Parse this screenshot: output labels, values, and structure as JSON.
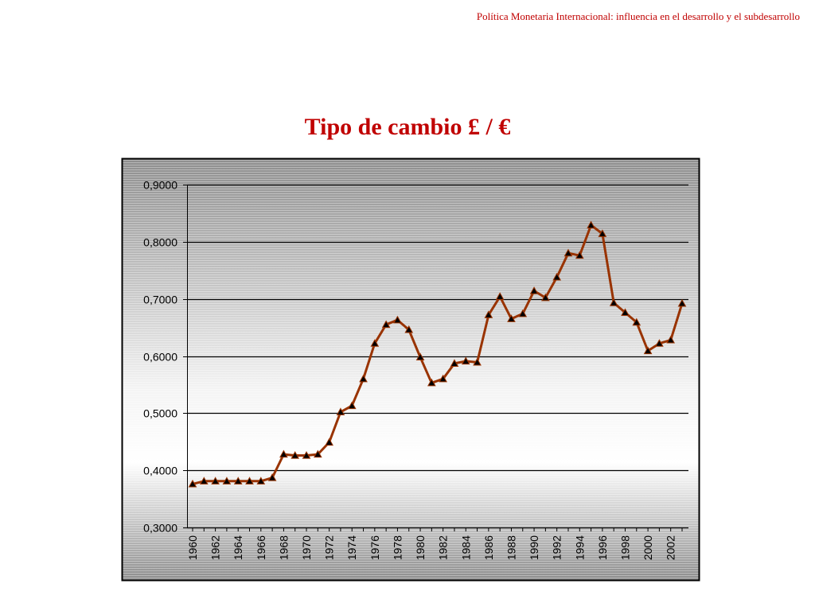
{
  "slide": {
    "header_note": "Política Monetaria Internacional: influencia en el desarrollo y el subdesarrollo",
    "title": "Tipo de cambio £ / €"
  },
  "colors": {
    "title": "#c00000",
    "line": "#993300",
    "marker": "#000000",
    "background_dark": "#9a9a9a",
    "background_light": "#ffffff"
  },
  "chart_data": {
    "type": "line",
    "title": "Tipo de cambio £ / €",
    "xlabel": "",
    "ylabel": "",
    "ylim": [
      0.3,
      0.9
    ],
    "y_ticks": [
      "0,3000",
      "0,4000",
      "0,5000",
      "0,6000",
      "0,7000",
      "0,8000",
      "0,9000"
    ],
    "y_tick_values": [
      0.3,
      0.4,
      0.5,
      0.6,
      0.7,
      0.8,
      0.9
    ],
    "x_tick_labels": [
      "1960",
      "1962",
      "1964",
      "1966",
      "1968",
      "1970",
      "1972",
      "1974",
      "1976",
      "1978",
      "1980",
      "1982",
      "1984",
      "1986",
      "1988",
      "1990",
      "1992",
      "1994",
      "1996",
      "1998",
      "2000",
      "2002"
    ],
    "grid": true,
    "legend": "none",
    "x": [
      1960,
      1961,
      1962,
      1963,
      1964,
      1965,
      1966,
      1967,
      1968,
      1969,
      1970,
      1971,
      1972,
      1973,
      1974,
      1975,
      1976,
      1977,
      1978,
      1979,
      1980,
      1981,
      1982,
      1983,
      1984,
      1985,
      1986,
      1987,
      1988,
      1989,
      1990,
      1991,
      1992,
      1993,
      1994,
      1995,
      1996,
      1997,
      1998,
      1999,
      2000,
      2001,
      2002,
      2003
    ],
    "series": [
      {
        "values": [
          0.376,
          0.381,
          0.381,
          0.381,
          0.381,
          0.381,
          0.381,
          0.387,
          0.428,
          0.426,
          0.426,
          0.428,
          0.449,
          0.502,
          0.513,
          0.56,
          0.622,
          0.655,
          0.663,
          0.646,
          0.598,
          0.553,
          0.56,
          0.587,
          0.591,
          0.589,
          0.672,
          0.704,
          0.665,
          0.674,
          0.714,
          0.702,
          0.738,
          0.78,
          0.776,
          0.829,
          0.814,
          0.693,
          0.676,
          0.659,
          0.609,
          0.622,
          0.628,
          0.692
        ]
      }
    ]
  }
}
